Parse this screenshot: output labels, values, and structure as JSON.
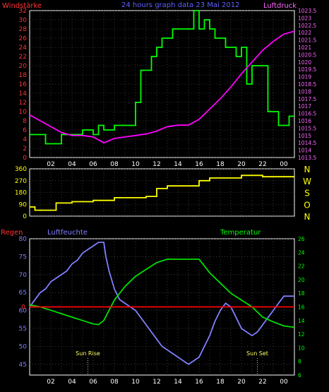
{
  "header": {
    "wind_label": "Windstärke",
    "title": "24 hours graph data  23 Mai 2012",
    "pressure_label": "Luftdruck"
  },
  "labels": {
    "rain": "Regen",
    "humidity": "Luftfeuchte",
    "temperature": "Temperatur",
    "sunrise": "Sun Rise",
    "sunset": "Sun Set"
  },
  "colors": {
    "wind": "#00ff00",
    "pressure": "#ff00ff",
    "direction": "#ffff00",
    "humidity": "#8080ff",
    "temperature": "#00e000",
    "rain": "#ff0000",
    "axis_left": "#ff3333",
    "axis_right_top": "#ff66ff",
    "axis_humidity": "#8080ff",
    "axis_temp": "#00ff00",
    "axis_dir": "#ffff00",
    "grid": "#ffffff"
  },
  "chart_data": [
    {
      "type": "line",
      "id": "wind-pressure",
      "x_ticks": [
        "02",
        "04",
        "06",
        "08",
        "10",
        "12",
        "14",
        "16",
        "18",
        "20",
        "22",
        "00"
      ],
      "xlim": [
        0,
        24
      ],
      "left_axis": {
        "label": "Windstärke",
        "ylim": [
          0,
          32
        ],
        "ticks": [
          "0",
          "2",
          "4",
          "6",
          "8",
          "10",
          "12",
          "14",
          "16",
          "18",
          "20",
          "22",
          "24",
          "26",
          "28",
          "30",
          "32"
        ]
      },
      "right_axis": {
        "label": "Luftdruck",
        "ylim": [
          1013.5,
          1023.5
        ],
        "ticks": [
          "1013.5",
          "1014",
          "1014.5",
          "1015",
          "1015.5",
          "1016",
          "1016.5",
          "1017",
          "1017.5",
          "1018",
          "1018.5",
          "1019",
          "1019.5",
          "1020",
          "1020.5",
          "1021",
          "1021.5",
          "1022",
          "1022.5",
          "1023",
          "1023.5"
        ]
      },
      "series": [
        {
          "name": "Windstärke",
          "axis": "left",
          "points": [
            [
              0,
              5
            ],
            [
              1.5,
              5
            ],
            [
              1.5,
              3
            ],
            [
              3,
              3
            ],
            [
              3,
              5
            ],
            [
              5,
              5
            ],
            [
              5,
              6
            ],
            [
              6,
              6
            ],
            [
              6,
              5
            ],
            [
              6.5,
              5
            ],
            [
              6.5,
              7
            ],
            [
              7,
              7
            ],
            [
              7,
              6
            ],
            [
              8,
              6
            ],
            [
              8,
              7
            ],
            [
              10,
              7
            ],
            [
              10,
              12
            ],
            [
              10.5,
              12
            ],
            [
              10.5,
              19
            ],
            [
              11.5,
              19
            ],
            [
              11.5,
              22
            ],
            [
              12,
              22
            ],
            [
              12,
              24
            ],
            [
              12.5,
              24
            ],
            [
              12.5,
              26
            ],
            [
              13.5,
              26
            ],
            [
              13.5,
              28
            ],
            [
              14,
              28
            ],
            [
              14,
              28
            ],
            [
              15.5,
              28
            ],
            [
              15.5,
              32
            ],
            [
              16,
              32
            ],
            [
              16,
              28
            ],
            [
              16.5,
              28
            ],
            [
              16.5,
              30
            ],
            [
              17,
              30
            ],
            [
              17,
              28
            ],
            [
              17.5,
              28
            ],
            [
              17.5,
              26
            ],
            [
              18.5,
              26
            ],
            [
              18.5,
              24
            ],
            [
              19.5,
              24
            ],
            [
              19.5,
              22
            ],
            [
              20,
              22
            ],
            [
              20,
              24
            ],
            [
              20.5,
              24
            ],
            [
              20.5,
              16
            ],
            [
              21,
              16
            ],
            [
              21,
              20
            ],
            [
              22.5,
              20
            ],
            [
              22.5,
              10
            ],
            [
              23.5,
              10
            ],
            [
              23.5,
              7
            ],
            [
              24.5,
              7
            ],
            [
              24.5,
              9
            ],
            [
              25,
              9
            ]
          ]
        },
        {
          "name": "Luftdruck",
          "axis": "right",
          "points": [
            [
              0,
              1016.4
            ],
            [
              1,
              1016.0
            ],
            [
              2,
              1015.6
            ],
            [
              3,
              1015.2
            ],
            [
              4,
              1015.0
            ],
            [
              5,
              1015.0
            ],
            [
              6,
              1014.9
            ],
            [
              7,
              1014.5
            ],
            [
              8,
              1014.8
            ],
            [
              9,
              1014.9
            ],
            [
              10,
              1015.0
            ],
            [
              11,
              1015.1
            ],
            [
              12,
              1015.3
            ],
            [
              13,
              1015.6
            ],
            [
              14,
              1015.7
            ],
            [
              15,
              1015.7
            ],
            [
              16,
              1016.1
            ],
            [
              17,
              1016.8
            ],
            [
              18,
              1017.5
            ],
            [
              19,
              1018.3
            ],
            [
              20,
              1019.2
            ],
            [
              21,
              1020.0
            ],
            [
              22,
              1020.8
            ],
            [
              23,
              1021.4
            ],
            [
              24,
              1021.9
            ],
            [
              25,
              1022.1
            ]
          ]
        }
      ]
    },
    {
      "type": "line",
      "id": "wind-direction",
      "xlim": [
        0,
        24
      ],
      "left_axis": {
        "ylim": [
          0,
          360
        ],
        "ticks": [
          "0",
          "90",
          "180",
          "270",
          "360"
        ]
      },
      "right_labels": [
        "N",
        "W",
        "S",
        "O",
        "N"
      ],
      "series": [
        {
          "name": "Windrichtung",
          "points": [
            [
              0,
              70
            ],
            [
              0.5,
              70
            ],
            [
              0.5,
              45
            ],
            [
              2.5,
              45
            ],
            [
              2.5,
              100
            ],
            [
              4,
              100
            ],
            [
              4,
              110
            ],
            [
              6,
              110
            ],
            [
              6,
              120
            ],
            [
              8,
              120
            ],
            [
              8,
              140
            ],
            [
              11,
              140
            ],
            [
              11,
              150
            ],
            [
              12,
              150
            ],
            [
              12,
              210
            ],
            [
              13,
              210
            ],
            [
              13,
              230
            ],
            [
              16,
              230
            ],
            [
              16,
              270
            ],
            [
              17,
              270
            ],
            [
              17,
              290
            ],
            [
              20,
              290
            ],
            [
              20,
              310
            ],
            [
              22,
              310
            ],
            [
              22,
              300
            ],
            [
              25,
              300
            ]
          ]
        }
      ]
    },
    {
      "type": "line",
      "id": "humidity-temperature",
      "xlim": [
        0,
        24
      ],
      "x_ticks": [
        "02",
        "04",
        "06",
        "08",
        "10",
        "12",
        "14",
        "16",
        "18",
        "20",
        "22",
        "00"
      ],
      "left_axis": {
        "ylim": [
          42,
          80
        ],
        "ticks": [
          "45",
          "50",
          "55",
          "60",
          "65",
          "70",
          "75",
          "80"
        ],
        "label": "Luftfeuchte"
      },
      "right_axis": {
        "ylim": [
          6,
          26
        ],
        "ticks": [
          "6",
          "8",
          "10",
          "12",
          "14",
          "16",
          "18",
          "20",
          "22",
          "24",
          "26"
        ],
        "label": "Temperatur"
      },
      "rain_axis": {
        "ticks": [
          "0"
        ],
        "label": "Regen"
      },
      "annotations": [
        {
          "x": 5.5,
          "text": "Sun Rise"
        },
        {
          "x": 21.5,
          "text": "Sun Set"
        }
      ],
      "series": [
        {
          "name": "Luftfeuchte",
          "axis": "left",
          "points": [
            [
              0,
              61
            ],
            [
              0.5,
              63
            ],
            [
              1,
              65
            ],
            [
              1.5,
              66
            ],
            [
              2,
              68
            ],
            [
              2.5,
              69
            ],
            [
              3,
              70
            ],
            [
              3.5,
              71
            ],
            [
              4,
              73
            ],
            [
              4.5,
              74
            ],
            [
              5,
              76
            ],
            [
              5.5,
              77
            ],
            [
              6,
              78
            ],
            [
              6.5,
              79
            ],
            [
              7,
              79
            ],
            [
              7.2,
              75
            ],
            [
              7.5,
              71
            ],
            [
              8,
              66
            ],
            [
              8.5,
              63
            ],
            [
              9,
              62
            ],
            [
              9.5,
              61
            ],
            [
              10,
              60
            ],
            [
              10.5,
              58
            ],
            [
              11,
              56
            ],
            [
              11.5,
              54
            ],
            [
              12,
              52
            ],
            [
              12.5,
              50
            ],
            [
              13,
              49
            ],
            [
              13.5,
              48
            ],
            [
              14,
              47
            ],
            [
              14.5,
              46
            ],
            [
              15,
              45
            ],
            [
              15.5,
              46
            ],
            [
              16,
              47
            ],
            [
              16.5,
              50
            ],
            [
              17,
              53
            ],
            [
              17.5,
              57
            ],
            [
              18,
              60
            ],
            [
              18.5,
              62
            ],
            [
              19,
              61
            ],
            [
              19.5,
              58
            ],
            [
              20,
              55
            ],
            [
              20.5,
              54
            ],
            [
              21,
              53
            ],
            [
              21.5,
              54
            ],
            [
              22,
              56
            ],
            [
              22.5,
              58
            ],
            [
              23,
              60
            ],
            [
              23.5,
              62
            ],
            [
              24,
              64
            ],
            [
              25,
              64
            ]
          ]
        },
        {
          "name": "Temperatur",
          "axis": "right",
          "points": [
            [
              0,
              16.3
            ],
            [
              1,
              16.0
            ],
            [
              2,
              15.5
            ],
            [
              3,
              15.0
            ],
            [
              4,
              14.5
            ],
            [
              5,
              14.0
            ],
            [
              6,
              13.5
            ],
            [
              6.5,
              13.4
            ],
            [
              7,
              14.0
            ],
            [
              7.5,
              15.5
            ],
            [
              8,
              17.0
            ],
            [
              9,
              19.0
            ],
            [
              10,
              20.5
            ],
            [
              11,
              21.5
            ],
            [
              12,
              22.5
            ],
            [
              13,
              23.0
            ],
            [
              14,
              23.0
            ],
            [
              15,
              23.0
            ],
            [
              16,
              23.0
            ],
            [
              16.5,
              22.0
            ],
            [
              17,
              21.0
            ],
            [
              18,
              19.5
            ],
            [
              19,
              18.0
            ],
            [
              20,
              17.0
            ],
            [
              21,
              16.0
            ],
            [
              22,
              14.5
            ],
            [
              23,
              13.8
            ],
            [
              24,
              13.2
            ],
            [
              25,
              13.0
            ]
          ]
        },
        {
          "name": "Regen",
          "axis": "right",
          "points": [
            [
              0,
              16
            ],
            [
              25,
              16
            ]
          ]
        }
      ]
    }
  ]
}
